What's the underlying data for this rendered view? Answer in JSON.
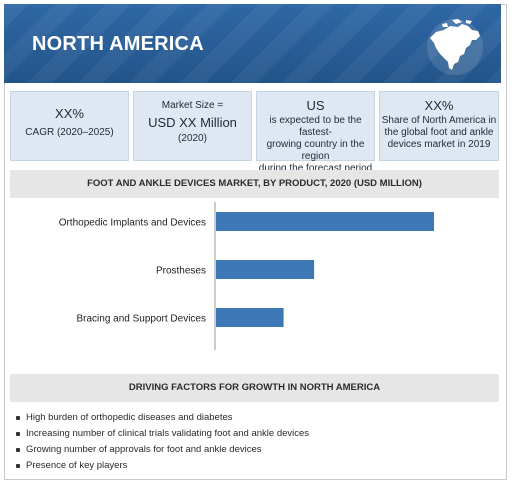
{
  "header": {
    "title": "NORTH AMERICA"
  },
  "stats": [
    {
      "big": "XX%",
      "small": [
        "CAGR (2020–2025)"
      ]
    },
    {
      "small_top": "Market Size =",
      "big": "USD XX Million",
      "small": [
        "(2020)"
      ]
    },
    {
      "big": "US",
      "small": [
        "is expected to be the fastest-",
        "growing country in the region",
        "during the forecast period"
      ]
    },
    {
      "big": "XX%",
      "small": [
        "Share of North America in",
        "the global foot and ankle",
        "devices market in 2019"
      ]
    }
  ],
  "chart_section": {
    "title": "FOOT AND ANKLE DEVICES MARKET, BY PRODUCT, 2020 (USD MILLION)"
  },
  "chart_data": {
    "type": "bar",
    "orientation": "horizontal",
    "title": "FOOT AND ANKLE DEVICES MARKET, BY PRODUCT, 2020 (USD MILLION)",
    "categories": [
      "Orthopedic Implants and Devices",
      "Prostheses",
      "Bracing and Support Devices"
    ],
    "values": [
      100,
      45,
      31
    ],
    "xlim": [
      0,
      100
    ],
    "color": "#3d77b6",
    "grid": false,
    "legend": "none"
  },
  "drivers": {
    "title": "DRIVING FACTORS FOR GROWTH IN NORTH AMERICA",
    "items": [
      "High burden of  orthopedic diseases and diabetes",
      "Increasing number of clinical trials validating foot and ankle devices",
      "Growing number of approvals for foot and ankle devices",
      "Presence of key players"
    ]
  },
  "colors": {
    "header": "#2a5f9a",
    "bar": "#3d77b6",
    "card": "#dee7f2",
    "band": "#e6e6e6"
  },
  "icons": {
    "header": "north-america-map-icon",
    "bullet": "square-bullet-icon"
  }
}
